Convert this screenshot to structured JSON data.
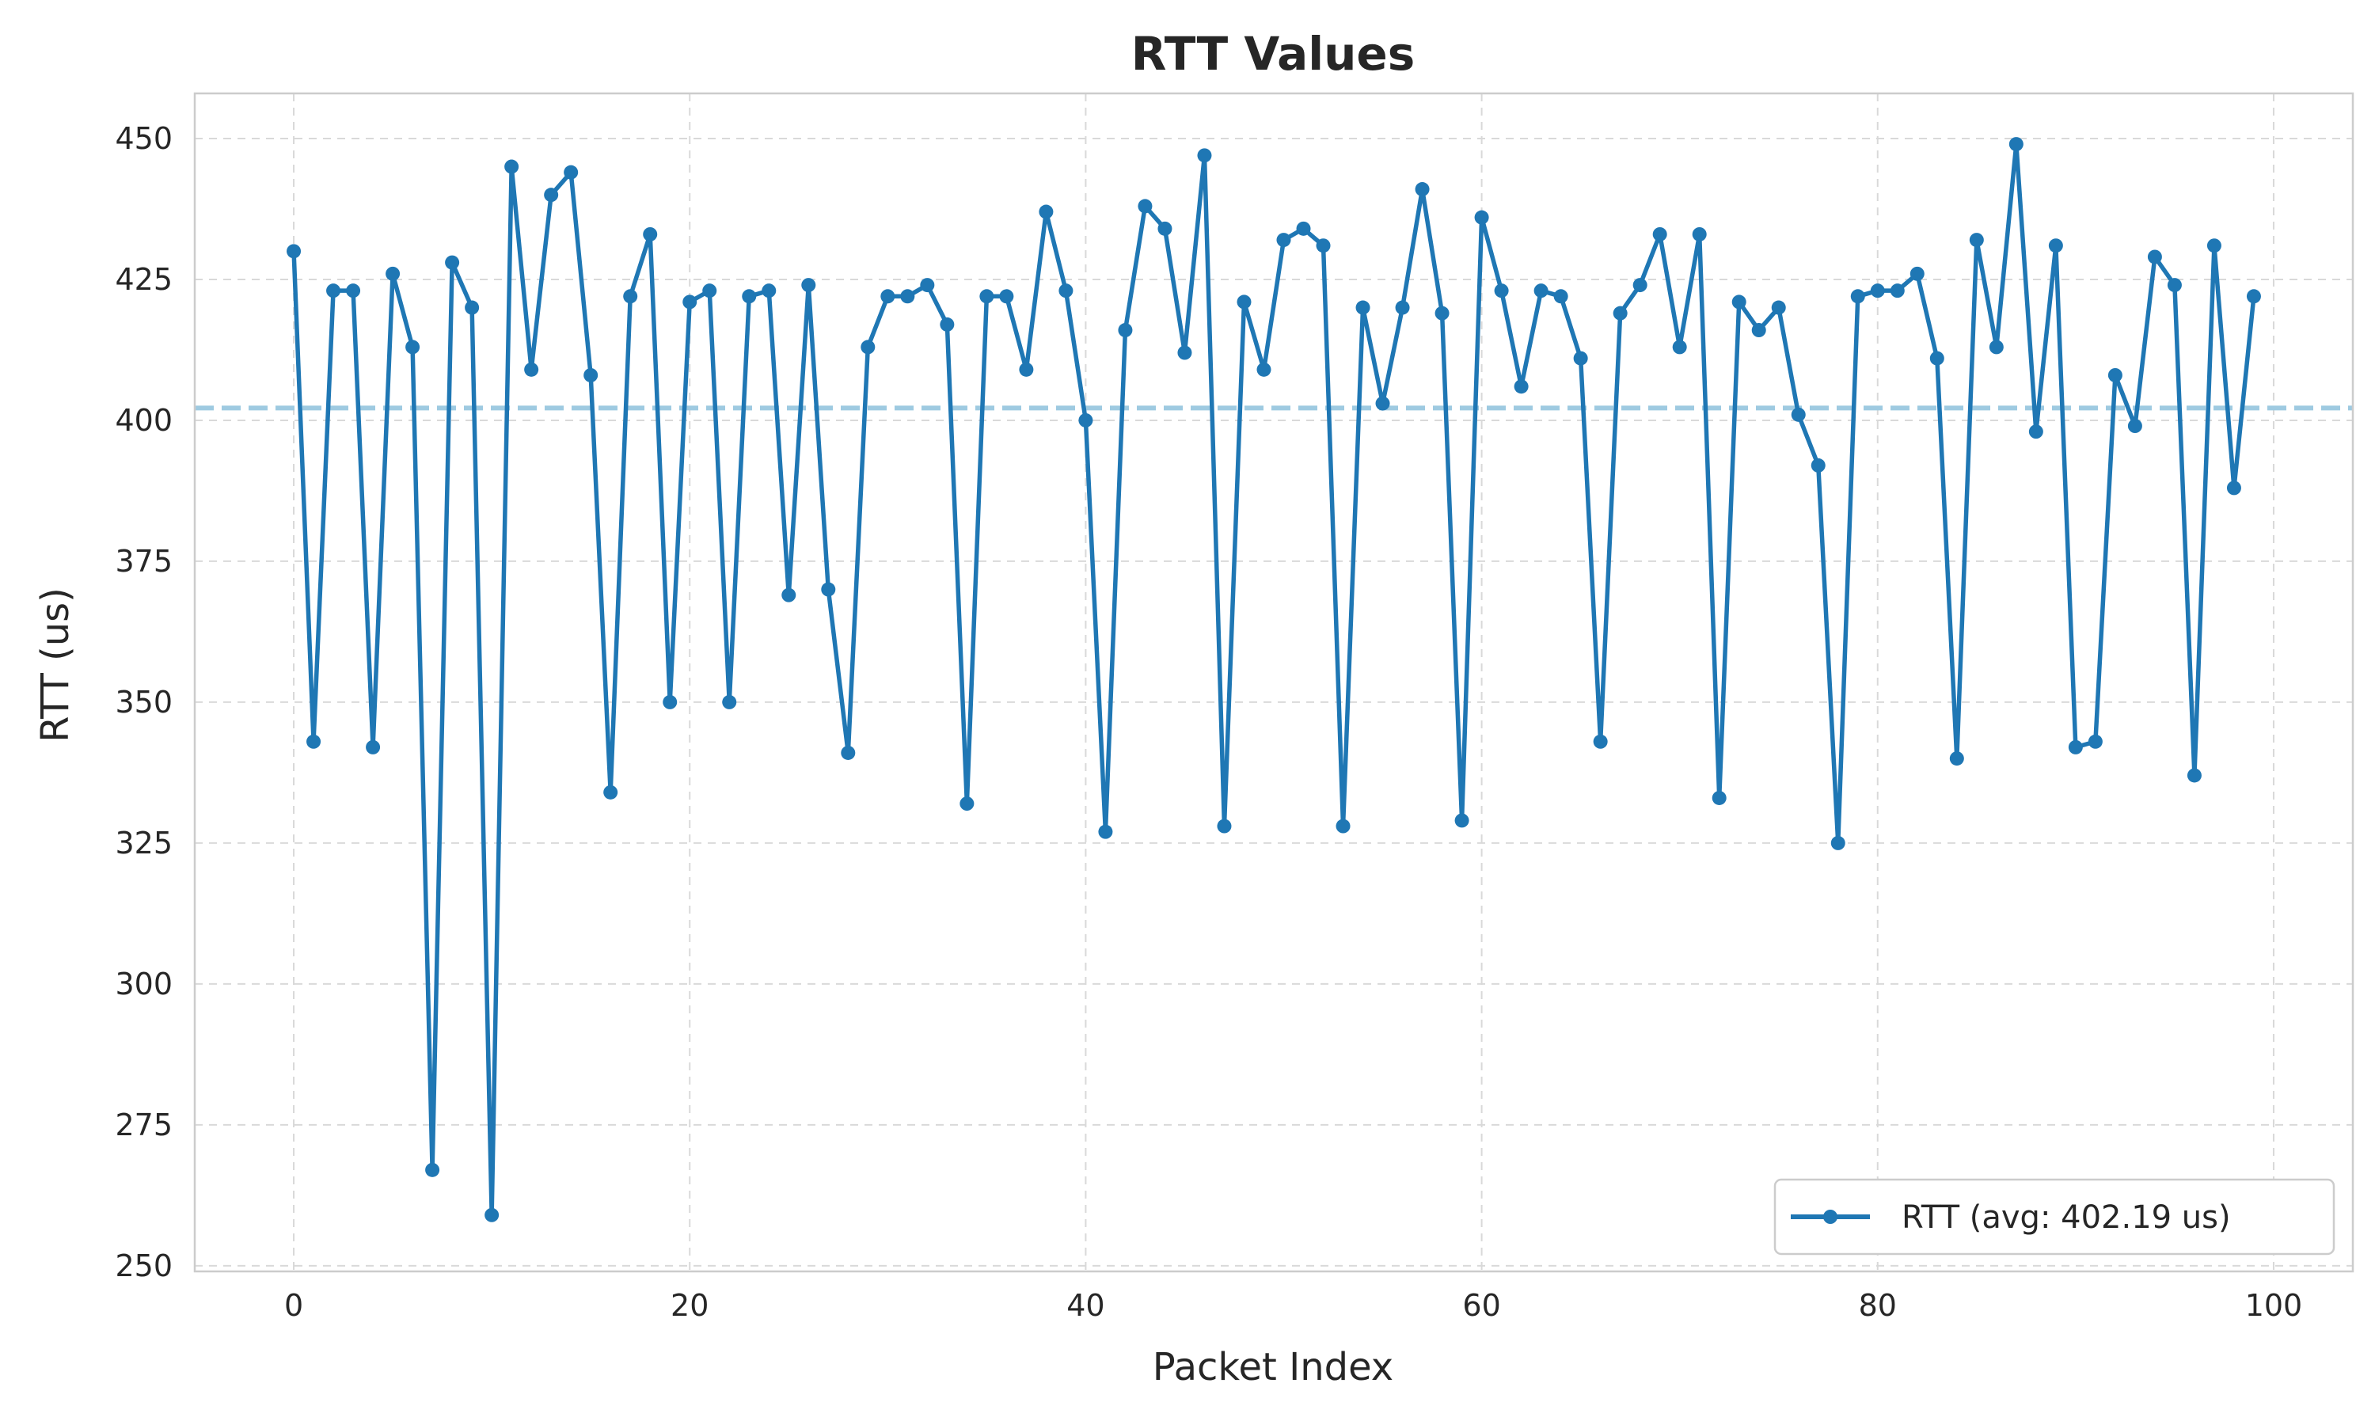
{
  "chart_data": {
    "type": "line",
    "title": "RTT Values",
    "xlabel": "Packet Index",
    "ylabel": "RTT (us)",
    "xlim": [
      -5,
      104
    ],
    "ylim": [
      249,
      458
    ],
    "xticks": [
      0,
      20,
      40,
      60,
      80,
      100
    ],
    "yticks": [
      250,
      275,
      300,
      325,
      350,
      375,
      400,
      425,
      450
    ],
    "grid": true,
    "legend_position": "lower-right",
    "series": [
      {
        "name": "RTT (avg: 402.19 us)",
        "color": "#1f77b4",
        "marker": "circle",
        "x": [
          0,
          1,
          2,
          3,
          4,
          5,
          6,
          7,
          8,
          9,
          10,
          11,
          12,
          13,
          14,
          15,
          16,
          17,
          18,
          19,
          20,
          21,
          22,
          23,
          24,
          25,
          26,
          27,
          28,
          29,
          30,
          31,
          32,
          33,
          34,
          35,
          36,
          37,
          38,
          39,
          40,
          41,
          42,
          43,
          44,
          45,
          46,
          47,
          48,
          49,
          50,
          51,
          52,
          53,
          54,
          55,
          56,
          57,
          58,
          59,
          60,
          61,
          62,
          63,
          64,
          65,
          66,
          67,
          68,
          69,
          70,
          71,
          72,
          73,
          74,
          75,
          76,
          77,
          78,
          79,
          80,
          81,
          82,
          83,
          84,
          85,
          86,
          87,
          88,
          89,
          90,
          91,
          92,
          93,
          94,
          95,
          96,
          97,
          98,
          99
        ],
        "values": [
          430,
          343,
          423,
          423,
          342,
          426,
          413,
          267,
          428,
          420,
          259,
          445,
          409,
          440,
          444,
          408,
          334,
          422,
          433,
          350,
          421,
          423,
          350,
          422,
          423,
          369,
          424,
          370,
          341,
          413,
          422,
          422,
          424,
          417,
          332,
          422,
          422,
          409,
          437,
          423,
          400,
          327,
          416,
          438,
          434,
          412,
          447,
          328,
          421,
          409,
          432,
          434,
          431,
          328,
          420,
          403,
          420,
          441,
          419,
          329,
          436,
          423,
          406,
          423,
          422,
          411,
          343,
          419,
          424,
          433,
          413,
          433,
          333,
          421,
          416,
          420,
          401,
          392,
          325,
          422,
          423,
          423,
          426,
          411,
          340,
          432,
          413,
          449,
          398,
          431,
          342,
          343,
          408,
          399,
          429,
          424,
          337,
          431,
          388,
          422
        ]
      }
    ],
    "average_line": {
      "value": 402.19,
      "color": "#9ecae1",
      "style": "dashed"
    }
  }
}
